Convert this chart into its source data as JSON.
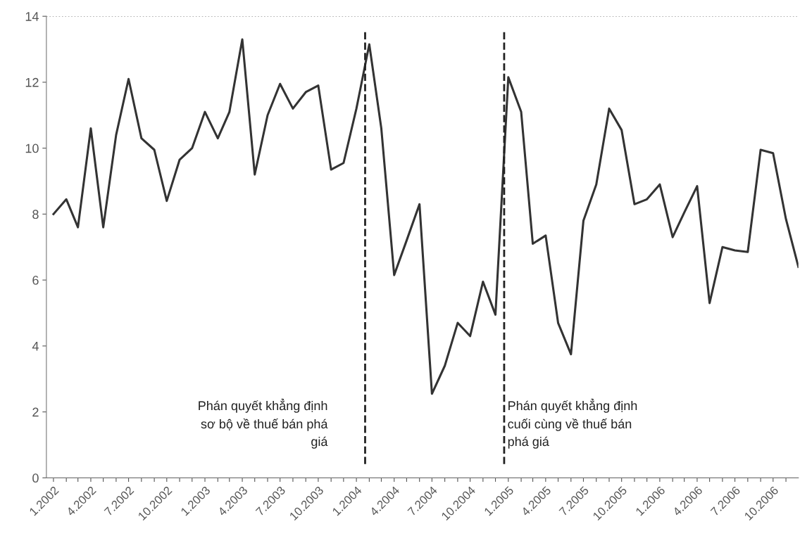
{
  "chart_data": {
    "type": "line",
    "x": [
      "2002-01",
      "2002-02",
      "2002-03",
      "2002-04",
      "2002-05",
      "2002-06",
      "2002-07",
      "2002-08",
      "2002-09",
      "2002-10",
      "2002-11",
      "2002-12",
      "2003-01",
      "2003-02",
      "2003-03",
      "2003-04",
      "2003-05",
      "2003-06",
      "2003-07",
      "2003-08",
      "2003-09",
      "2003-10",
      "2003-11",
      "2003-12",
      "2004-01",
      "2004-02",
      "2004-03",
      "2004-04",
      "2004-05",
      "2004-06",
      "2004-07",
      "2004-08",
      "2004-09",
      "2004-10",
      "2004-11",
      "2004-12",
      "2005-01",
      "2005-02",
      "2005-03",
      "2005-04",
      "2005-05",
      "2005-06",
      "2005-07",
      "2005-08",
      "2005-09",
      "2005-10",
      "2005-11",
      "2005-12",
      "2006-01",
      "2006-02",
      "2006-03",
      "2006-04",
      "2006-05",
      "2006-06",
      "2006-07",
      "2006-08",
      "2006-09",
      "2006-10",
      "2006-11",
      "2006-12"
    ],
    "series": [
      {
        "color": "#333333",
        "values": [
          8.0,
          8.45,
          7.6,
          10.6,
          7.6,
          10.4,
          12.1,
          10.3,
          9.95,
          8.4,
          9.65,
          10.0,
          11.1,
          10.3,
          11.1,
          13.3,
          9.2,
          11.0,
          11.95,
          11.2,
          11.7,
          11.9,
          9.35,
          9.55,
          11.2,
          13.15,
          10.6,
          6.15,
          7.2,
          8.3,
          2.55,
          3.4,
          4.7,
          4.3,
          5.95,
          4.95,
          12.15,
          11.1,
          7.1,
          7.35,
          4.7,
          3.75,
          7.8,
          8.9,
          11.2,
          10.55,
          8.3,
          8.45,
          8.9,
          7.3,
          8.05,
          8.85,
          5.3,
          7.0,
          6.9,
          6.85,
          9.95,
          9.85,
          7.85,
          6.4
        ]
      }
    ],
    "xlim": [
      "2001-12-15",
      "2006-12-01"
    ],
    "xticks": [
      {
        "value": "2002-01",
        "label": "1.2002"
      },
      {
        "value": "2002-02",
        "label": null
      },
      {
        "value": "2002-03",
        "label": null
      },
      {
        "value": "2002-04",
        "label": "4.2002"
      },
      {
        "value": "2002-05",
        "label": null
      },
      {
        "value": "2002-06",
        "label": null
      },
      {
        "value": "2002-07",
        "label": "7.2002"
      },
      {
        "value": "2002-08",
        "label": null
      },
      {
        "value": "2002-09",
        "label": null
      },
      {
        "value": "2002-10",
        "label": "10.2002"
      },
      {
        "value": "2002-11",
        "label": null
      },
      {
        "value": "2002-12",
        "label": null
      },
      {
        "value": "2003-01",
        "label": "1.2003"
      },
      {
        "value": "2003-02",
        "label": null
      },
      {
        "value": "2003-03",
        "label": null
      },
      {
        "value": "2003-04",
        "label": "4.2003"
      },
      {
        "value": "2003-05",
        "label": null
      },
      {
        "value": "2003-06",
        "label": null
      },
      {
        "value": "2003-07",
        "label": "7.2003"
      },
      {
        "value": "2003-08",
        "label": null
      },
      {
        "value": "2003-09",
        "label": null
      },
      {
        "value": "2003-10",
        "label": "10.2003"
      },
      {
        "value": "2003-11",
        "label": null
      },
      {
        "value": "2003-12",
        "label": null
      },
      {
        "value": "2004-01",
        "label": "1.2004"
      },
      {
        "value": "2004-02",
        "label": null
      },
      {
        "value": "2004-03",
        "label": null
      },
      {
        "value": "2004-04",
        "label": "4.2004"
      },
      {
        "value": "2004-05",
        "label": null
      },
      {
        "value": "2004-06",
        "label": null
      },
      {
        "value": "2004-07",
        "label": "7.2004"
      },
      {
        "value": "2004-08",
        "label": null
      },
      {
        "value": "2004-09",
        "label": null
      },
      {
        "value": "2004-10",
        "label": "10.2004"
      },
      {
        "value": "2004-11",
        "label": null
      },
      {
        "value": "2004-12",
        "label": null
      },
      {
        "value": "2005-01",
        "label": "1.2005"
      },
      {
        "value": "2005-02",
        "label": null
      },
      {
        "value": "2005-03",
        "label": null
      },
      {
        "value": "2005-04",
        "label": "4.2005"
      },
      {
        "value": "2005-05",
        "label": null
      },
      {
        "value": "2005-06",
        "label": null
      },
      {
        "value": "2005-07",
        "label": "7.2005"
      },
      {
        "value": "2005-08",
        "label": null
      },
      {
        "value": "2005-09",
        "label": null
      },
      {
        "value": "2005-10",
        "label": "10.2005"
      },
      {
        "value": "2005-11",
        "label": null
      },
      {
        "value": "2005-12",
        "label": null
      },
      {
        "value": "2006-01",
        "label": "1.2006"
      },
      {
        "value": "2006-02",
        "label": null
      },
      {
        "value": "2006-03",
        "label": null
      },
      {
        "value": "2006-04",
        "label": "4.2006"
      },
      {
        "value": "2006-05",
        "label": null
      },
      {
        "value": "2006-06",
        "label": null
      },
      {
        "value": "2006-07",
        "label": "7.2006"
      },
      {
        "value": "2006-08",
        "label": null
      },
      {
        "value": "2006-09",
        "label": null
      },
      {
        "value": "2006-10",
        "label": "10.2006"
      },
      {
        "value": "2006-11",
        "label": null
      }
    ],
    "ylim": [
      0,
      14
    ],
    "yticks": [
      0,
      2,
      4,
      6,
      8,
      10,
      12,
      14
    ],
    "ref_lines": [
      {
        "axis": "x",
        "value": "2004-01-22",
        "label": "Phán quyết khẳng định\nsơ bộ về thuế bán phá\ngiá",
        "color": "#222222",
        "line_style": "dashed"
      },
      {
        "axis": "x",
        "value": "2004-12-22",
        "label": "Phán quyết khẳng định\ncuối cùng về thuế bán\nphá giá",
        "color": "#222222",
        "line_style": "dashed"
      },
      {
        "axis": "y",
        "value": 14,
        "color": "#999999",
        "line_style": "dotted"
      }
    ],
    "grid": false,
    "legend": false,
    "marker": "none",
    "line_style": "solid"
  }
}
